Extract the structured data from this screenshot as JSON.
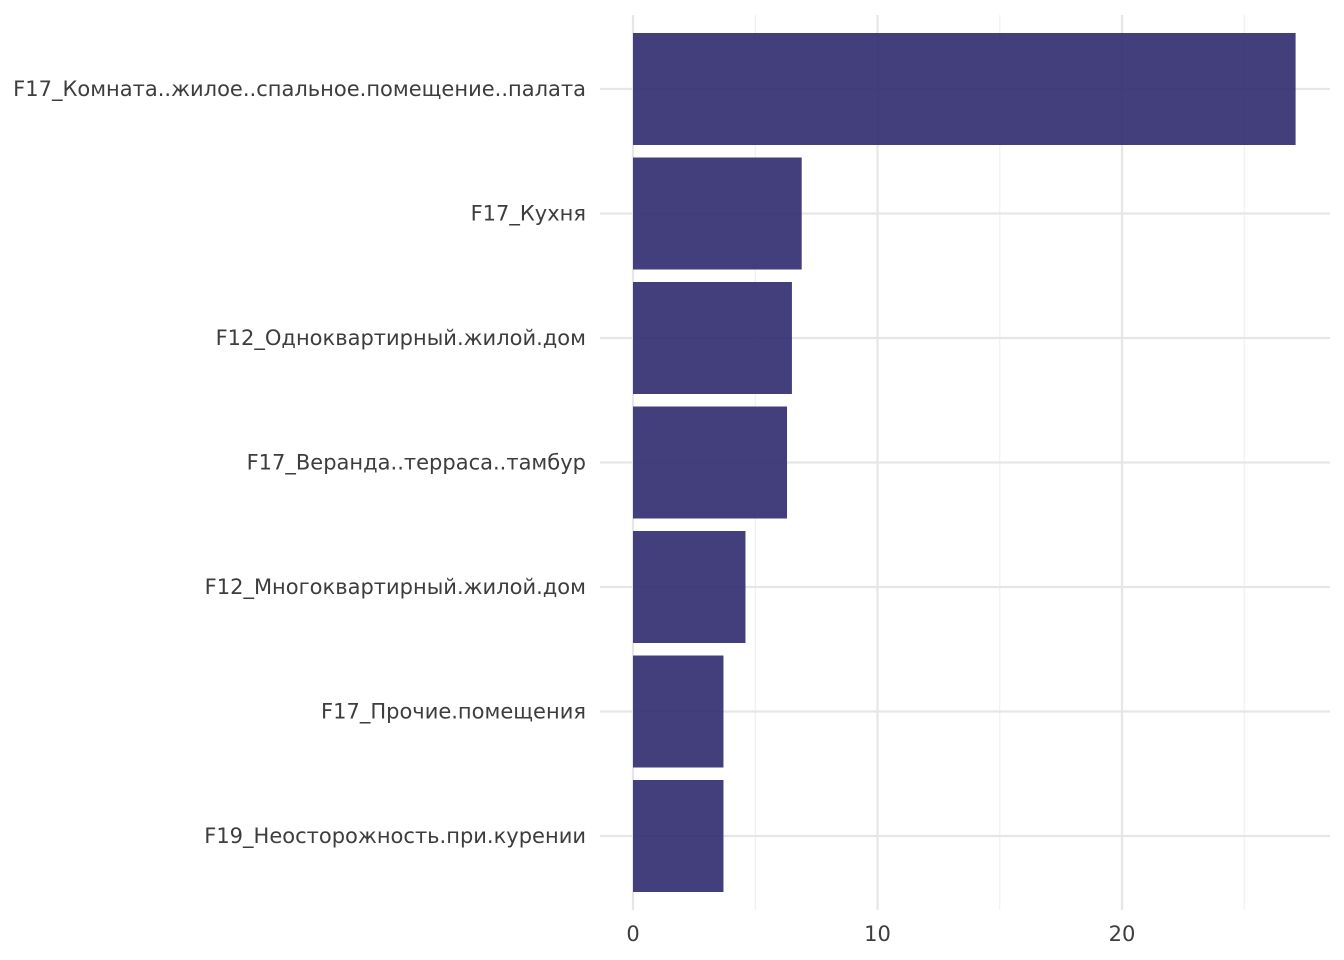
{
  "chart_data": {
    "type": "bar",
    "orientation": "horizontal",
    "title": "",
    "xlabel": "",
    "ylabel": "",
    "categories": [
      "F17_Комната..жилое..спальное.помещение..палата",
      "F17_Кухня",
      "F12_Одноквартирный.жилой.дом",
      "F17_Веранда..терраса..тамбур",
      "F12_Многоквартирный.жилой.дом",
      "F17_Прочие.помещения",
      "F19_Неосторожность.при.курении"
    ],
    "values": [
      27.1,
      6.9,
      6.5,
      6.3,
      4.6,
      3.7,
      3.7
    ],
    "xlim": [
      0,
      28.5
    ],
    "x_ticks": [
      0,
      10,
      20
    ],
    "x_tick_labels": [
      "0",
      "10",
      "20"
    ],
    "x_minor_ticks": [
      5,
      15,
      25
    ],
    "grid": true,
    "legend": "none",
    "bar_color": "#2d2a6e"
  }
}
